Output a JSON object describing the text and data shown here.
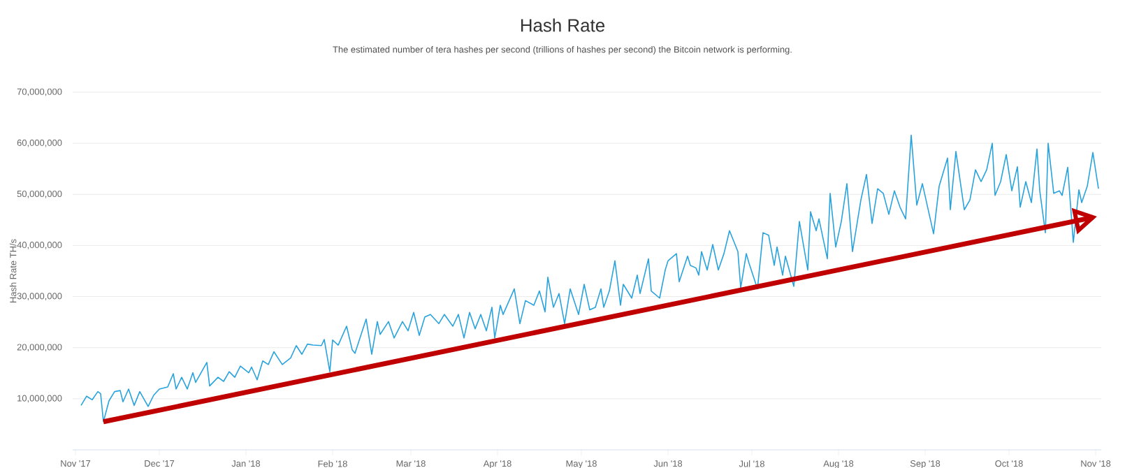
{
  "chart_data": {
    "type": "line",
    "title": "Hash Rate",
    "subtitle": "The estimated number of tera hashes per second (trillions of hashes per second) the Bitcoin network is performing.",
    "ylabel": "Hash Rate TH/s",
    "xlim": [
      "2017-10-31",
      "2018-11-03"
    ],
    "ylim": [
      0,
      70000000
    ],
    "xticks": [
      {
        "value": "2017-11-01",
        "label": "Nov '17"
      },
      {
        "value": "2017-12-01",
        "label": "Dec '17"
      },
      {
        "value": "2018-01-01",
        "label": "Jan '18"
      },
      {
        "value": "2018-02-01",
        "label": "Feb '18"
      },
      {
        "value": "2018-03-01",
        "label": "Mar '18"
      },
      {
        "value": "2018-04-01",
        "label": "Apr '18"
      },
      {
        "value": "2018-05-01",
        "label": "May '18"
      },
      {
        "value": "2018-06-01",
        "label": "Jun '18"
      },
      {
        "value": "2018-07-01",
        "label": "Jul '18"
      },
      {
        "value": "2018-08-01",
        "label": "Aug '18"
      },
      {
        "value": "2018-09-01",
        "label": "Sep '18"
      },
      {
        "value": "2018-10-01",
        "label": "Oct '18"
      },
      {
        "value": "2018-11-01",
        "label": "Nov '18"
      }
    ],
    "yticks": [
      {
        "value": 10000000,
        "label": "10,000,000"
      },
      {
        "value": 20000000,
        "label": "20,000,000"
      },
      {
        "value": 30000000,
        "label": "30,000,000"
      },
      {
        "value": 40000000,
        "label": "40,000,000"
      },
      {
        "value": 50000000,
        "label": "50,000,000"
      },
      {
        "value": 60000000,
        "label": "60,000,000"
      },
      {
        "value": 70000000,
        "label": "70,000,000"
      }
    ],
    "grid": "y",
    "series": [
      {
        "color": "#29a3dd",
        "x": [
          "2017-11-03",
          "2017-11-05",
          "2017-11-07",
          "2017-11-09",
          "2017-11-10",
          "2017-11-11",
          "2017-11-13",
          "2017-11-15",
          "2017-11-17",
          "2017-11-18",
          "2017-11-20",
          "2017-11-22",
          "2017-11-24",
          "2017-11-27",
          "2017-11-29",
          "2017-12-01",
          "2017-12-04",
          "2017-12-06",
          "2017-12-07",
          "2017-12-09",
          "2017-12-11",
          "2017-12-13",
          "2017-12-14",
          "2017-12-18",
          "2017-12-19",
          "2017-12-22",
          "2017-12-24",
          "2017-12-26",
          "2017-12-28",
          "2017-12-30",
          "2018-01-02",
          "2018-01-03",
          "2018-01-05",
          "2018-01-07",
          "2018-01-09",
          "2018-01-11",
          "2018-01-14",
          "2018-01-17",
          "2018-01-19",
          "2018-01-21",
          "2018-01-23",
          "2018-01-25",
          "2018-01-28",
          "2018-01-29",
          "2018-01-31",
          "2018-02-01",
          "2018-02-03",
          "2018-02-06",
          "2018-02-08",
          "2018-02-09",
          "2018-02-13",
          "2018-02-15",
          "2018-02-17",
          "2018-02-18",
          "2018-02-21",
          "2018-02-23",
          "2018-02-26",
          "2018-02-28",
          "2018-03-02",
          "2018-03-04",
          "2018-03-06",
          "2018-03-08",
          "2018-03-11",
          "2018-03-13",
          "2018-03-16",
          "2018-03-18",
          "2018-03-20",
          "2018-03-22",
          "2018-03-24",
          "2018-03-26",
          "2018-03-28",
          "2018-03-30",
          "2018-03-31",
          "2018-04-02",
          "2018-04-03",
          "2018-04-07",
          "2018-04-09",
          "2018-04-11",
          "2018-04-14",
          "2018-04-16",
          "2018-04-18",
          "2018-04-19",
          "2018-04-21",
          "2018-04-23",
          "2018-04-25",
          "2018-04-27",
          "2018-04-30",
          "2018-05-02",
          "2018-05-04",
          "2018-05-06",
          "2018-05-08",
          "2018-05-09",
          "2018-05-11",
          "2018-05-13",
          "2018-05-15",
          "2018-05-16",
          "2018-05-19",
          "2018-05-21",
          "2018-05-22",
          "2018-05-25",
          "2018-05-26",
          "2018-05-29",
          "2018-05-31",
          "2018-06-01",
          "2018-06-04",
          "2018-06-05",
          "2018-06-08",
          "2018-06-09",
          "2018-06-11",
          "2018-06-12",
          "2018-06-13",
          "2018-06-15",
          "2018-06-17",
          "2018-06-19",
          "2018-06-21",
          "2018-06-23",
          "2018-06-26",
          "2018-06-27",
          "2018-06-29",
          "2018-06-30",
          "2018-07-03",
          "2018-07-05",
          "2018-07-07",
          "2018-07-09",
          "2018-07-10",
          "2018-07-12",
          "2018-07-13",
          "2018-07-16",
          "2018-07-18",
          "2018-07-21",
          "2018-07-22",
          "2018-07-24",
          "2018-07-25",
          "2018-07-28",
          "2018-07-29",
          "2018-07-31",
          "2018-08-02",
          "2018-08-04",
          "2018-08-06",
          "2018-08-09",
          "2018-08-11",
          "2018-08-13",
          "2018-08-15",
          "2018-08-17",
          "2018-08-19",
          "2018-08-21",
          "2018-08-23",
          "2018-08-25",
          "2018-08-27",
          "2018-08-29",
          "2018-08-31",
          "2018-09-04",
          "2018-09-06",
          "2018-09-09",
          "2018-09-10",
          "2018-09-12",
          "2018-09-15",
          "2018-09-17",
          "2018-09-19",
          "2018-09-21",
          "2018-09-23",
          "2018-09-25",
          "2018-09-26",
          "2018-09-28",
          "2018-09-30",
          "2018-10-02",
          "2018-10-04",
          "2018-10-05",
          "2018-10-07",
          "2018-10-09",
          "2018-10-11",
          "2018-10-12",
          "2018-10-14",
          "2018-10-15",
          "2018-10-17",
          "2018-10-19",
          "2018-10-20",
          "2018-10-22",
          "2018-10-24",
          "2018-10-26",
          "2018-10-27",
          "2018-10-29",
          "2018-10-31",
          "2018-11-02"
        ],
        "values": [
          8700000,
          10500000,
          9800000,
          11400000,
          11000000,
          5500000,
          9600000,
          11400000,
          11600000,
          9400000,
          11900000,
          8700000,
          11400000,
          8500000,
          10700000,
          11900000,
          12300000,
          14900000,
          11900000,
          14200000,
          11900000,
          15100000,
          13200000,
          17100000,
          12500000,
          14200000,
          13400000,
          15300000,
          14200000,
          16400000,
          15100000,
          16200000,
          13700000,
          17400000,
          16700000,
          19200000,
          16700000,
          18000000,
          20400000,
          18700000,
          20700000,
          20500000,
          20400000,
          21600000,
          15300000,
          21500000,
          20500000,
          24200000,
          19600000,
          18900000,
          25600000,
          18700000,
          25100000,
          22600000,
          25100000,
          21900000,
          25100000,
          23300000,
          26900000,
          22400000,
          26000000,
          26500000,
          24700000,
          26500000,
          24200000,
          26500000,
          21900000,
          26900000,
          23700000,
          26500000,
          23300000,
          27900000,
          21900000,
          28300000,
          26500000,
          31500000,
          24700000,
          29200000,
          28300000,
          31100000,
          27000000,
          33800000,
          27900000,
          30600000,
          24700000,
          31500000,
          26500000,
          32400000,
          27400000,
          27900000,
          31500000,
          27900000,
          31100000,
          37000000,
          28300000,
          32400000,
          29700000,
          34200000,
          30600000,
          37400000,
          31100000,
          29700000,
          35200000,
          37000000,
          38400000,
          32900000,
          37900000,
          36100000,
          35600000,
          34200000,
          38800000,
          35200000,
          40200000,
          35200000,
          38400000,
          42900000,
          38800000,
          31700000,
          38400000,
          36500000,
          31500000,
          42500000,
          42000000,
          36100000,
          39700000,
          34200000,
          37900000,
          32000000,
          44700000,
          35200000,
          46600000,
          42900000,
          45200000,
          37400000,
          50200000,
          39700000,
          44700000,
          52100000,
          38800000,
          48900000,
          53900000,
          44300000,
          51100000,
          50200000,
          46100000,
          50700000,
          47500000,
          45200000,
          61600000,
          47900000,
          52100000,
          42300000,
          51600000,
          57100000,
          47000000,
          58400000,
          47000000,
          48900000,
          54800000,
          52500000,
          54800000,
          60000000,
          49800000,
          52500000,
          57800000,
          50700000,
          55400000,
          47500000,
          52500000,
          48400000,
          58900000,
          50700000,
          42500000,
          60000000,
          50200000,
          50700000,
          49800000,
          55300000,
          40600000,
          50900000,
          48400000,
          51600000,
          58200000,
          51100000
        ]
      },
      {
        "type": "line",
        "color": "#c00000",
        "x": [
          "2017-11-11",
          "2018-10-31"
        ],
        "values": [
          5500000,
          45500000
        ]
      }
    ]
  }
}
